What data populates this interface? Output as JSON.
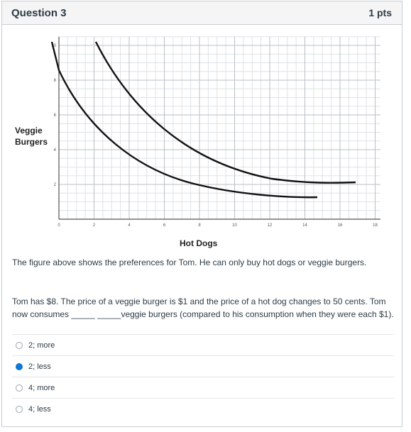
{
  "question": {
    "title": "Question 3",
    "points": "1 pts"
  },
  "figure": {
    "ylabel_line1": "Veggie",
    "ylabel_line2": "Burgers",
    "xlabel": "Hot Dogs",
    "x_ticks": [
      "0",
      "2",
      "4",
      "6",
      "8",
      "10",
      "12",
      "14",
      "16",
      "18"
    ],
    "y_ticks": [
      "10",
      "8",
      "6",
      "4",
      "2"
    ]
  },
  "body": {
    "intro": "The figure above shows the preferences for Tom.  He can only buy hot dogs or veggie burgers.",
    "prompt_line1": "Tom has $8.  The price of a veggie burger is $1 and the price of a hot dog changes to 50 cents.  Tom",
    "prompt_line2": "now consumes _____ _____veggie burgers (compared to his consumption when they were each $1)."
  },
  "options": [
    {
      "label": "2; more",
      "selected": false
    },
    {
      "label": "2; less",
      "selected": true
    },
    {
      "label": "4; more",
      "selected": false
    },
    {
      "label": "4; less",
      "selected": false
    }
  ],
  "colors": {
    "accent": "#0b74d1",
    "curve": "#111111"
  }
}
